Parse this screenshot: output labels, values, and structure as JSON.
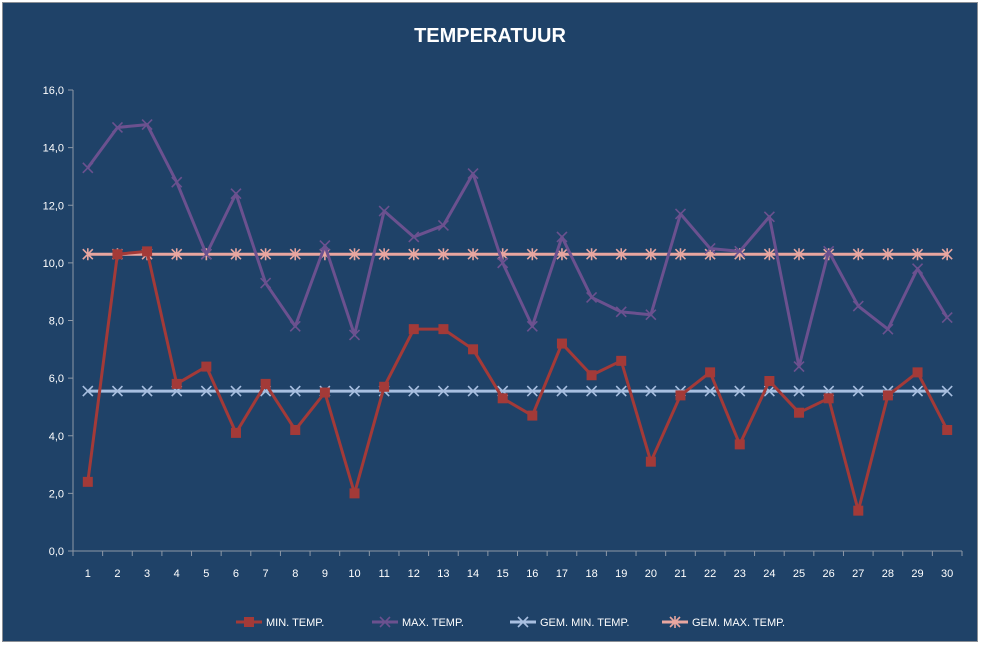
{
  "chart_data": {
    "type": "line",
    "title": "TEMPERATUUR",
    "xlabel": "",
    "ylabel": "",
    "ylim": [
      0,
      16
    ],
    "y_ticks": [
      "0,0",
      "2,0",
      "4,0",
      "6,0",
      "8,0",
      "10,0",
      "12,0",
      "14,0",
      "16,0"
    ],
    "categories": [
      "1",
      "2",
      "3",
      "4",
      "5",
      "6",
      "7",
      "8",
      "9",
      "10",
      "11",
      "12",
      "13",
      "14",
      "15",
      "16",
      "17",
      "18",
      "19",
      "20",
      "21",
      "22",
      "23",
      "24",
      "25",
      "26",
      "27",
      "28",
      "29",
      "30"
    ],
    "grid": false,
    "legend_position": "bottom",
    "series": [
      {
        "name": "MIN. TEMP.",
        "color": "#a33a38",
        "marker": "square",
        "values": [
          2.4,
          10.3,
          10.4,
          5.8,
          6.4,
          4.1,
          5.8,
          4.2,
          5.5,
          2.0,
          5.7,
          7.7,
          7.7,
          7.0,
          5.3,
          4.7,
          7.2,
          6.1,
          6.6,
          3.1,
          5.4,
          6.2,
          3.7,
          5.9,
          4.8,
          5.3,
          1.4,
          5.4,
          6.2,
          4.2
        ]
      },
      {
        "name": "MAX. TEMP.",
        "color": "#6b518f",
        "marker": "x",
        "values": [
          13.3,
          14.7,
          14.8,
          12.8,
          10.3,
          12.4,
          9.3,
          7.8,
          10.6,
          7.5,
          11.8,
          10.9,
          11.3,
          13.1,
          10.0,
          7.8,
          10.9,
          8.8,
          8.3,
          8.2,
          11.7,
          10.5,
          10.4,
          11.6,
          6.4,
          10.4,
          8.5,
          7.7,
          9.8,
          8.1
        ]
      },
      {
        "name": "GEM. MIN. TEMP.",
        "color": "#a8bfe0",
        "marker": "x",
        "values": [
          5.55,
          5.55,
          5.55,
          5.55,
          5.55,
          5.55,
          5.55,
          5.55,
          5.55,
          5.55,
          5.55,
          5.55,
          5.55,
          5.55,
          5.55,
          5.55,
          5.55,
          5.55,
          5.55,
          5.55,
          5.55,
          5.55,
          5.55,
          5.55,
          5.55,
          5.55,
          5.55,
          5.55,
          5.55,
          5.55
        ]
      },
      {
        "name": "GEM. MAX. TEMP.",
        "color": "#e8a6a0",
        "marker": "star",
        "values": [
          10.3,
          10.3,
          10.3,
          10.3,
          10.3,
          10.3,
          10.3,
          10.3,
          10.3,
          10.3,
          10.3,
          10.3,
          10.3,
          10.3,
          10.3,
          10.3,
          10.3,
          10.3,
          10.3,
          10.3,
          10.3,
          10.3,
          10.3,
          10.3,
          10.3,
          10.3,
          10.3,
          10.3,
          10.3,
          10.3
        ]
      }
    ]
  }
}
